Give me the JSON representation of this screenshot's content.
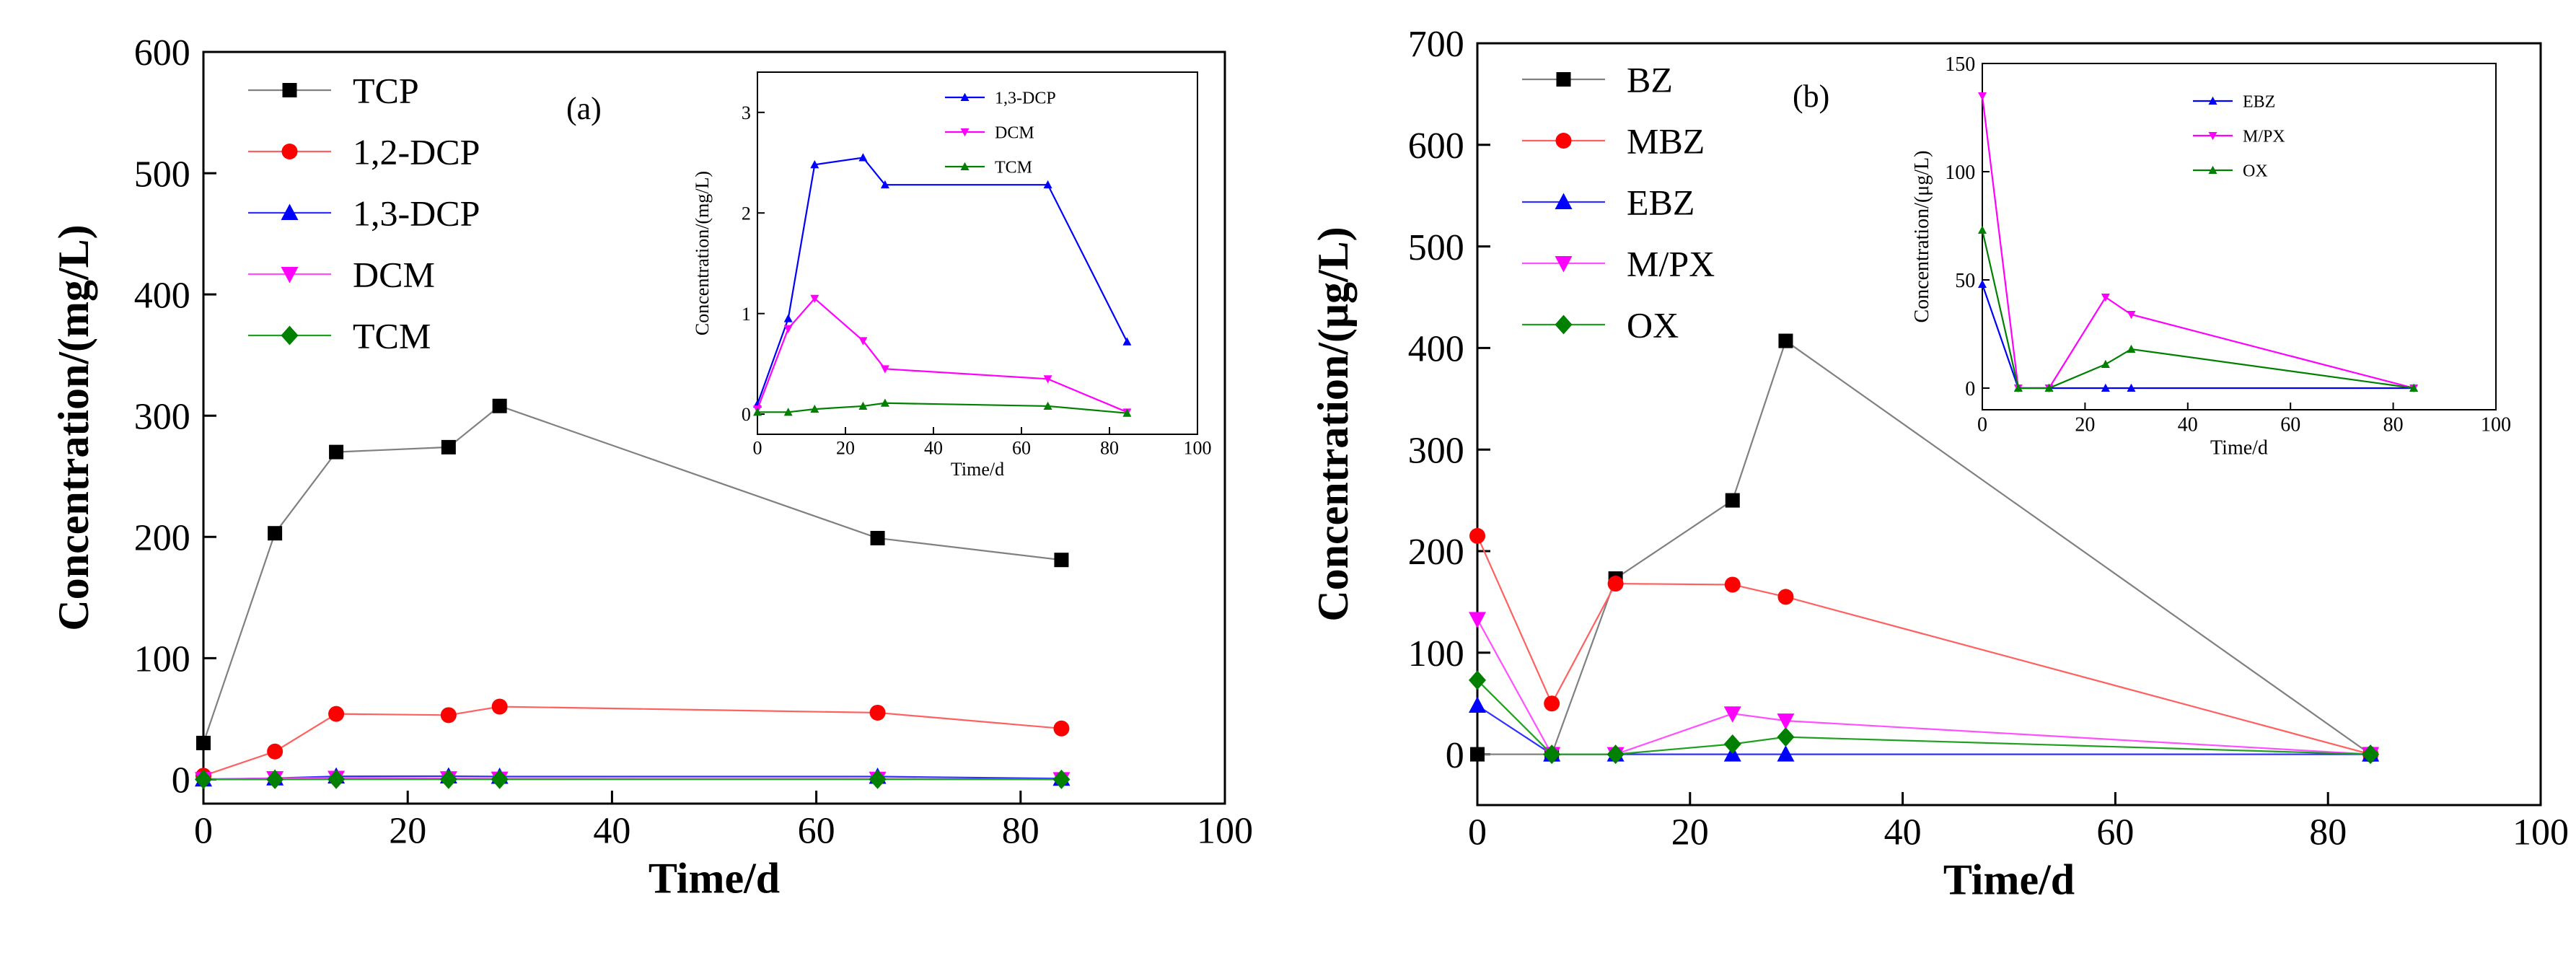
{
  "chart_data": [
    {
      "type": "line",
      "panel_label": "(a)",
      "xlabel": "Time/d",
      "ylabel": "Concentration/(mg/L)",
      "xlim": [
        0,
        100
      ],
      "ylim": [
        -20,
        600
      ],
      "xticks": [
        0,
        20,
        40,
        60,
        80,
        100
      ],
      "yticks": [
        0,
        100,
        200,
        300,
        400,
        500,
        600
      ],
      "legend_position": "top-left",
      "series": [
        {
          "name": "TCP",
          "color": "#000000",
          "lineColor": "#808080",
          "marker": "square",
          "x": [
            0,
            7,
            13,
            24,
            29,
            66,
            84
          ],
          "y": [
            30,
            203,
            270,
            274,
            308,
            199,
            181
          ]
        },
        {
          "name": "1,2-DCP",
          "color": "#ff0000",
          "lineColor": "#ff6060",
          "marker": "circle",
          "x": [
            0,
            7,
            13,
            24,
            29,
            66,
            84
          ],
          "y": [
            3,
            23,
            54,
            53,
            60,
            55,
            42
          ]
        },
        {
          "name": "1,3-DCP",
          "color": "#0000ff",
          "lineColor": "#3030ff",
          "marker": "triangle",
          "x": [
            0,
            7,
            13,
            24,
            29,
            66,
            84
          ],
          "y": [
            0.1,
            1,
            2.5,
            2.6,
            2.3,
            2.3,
            0.7
          ]
        },
        {
          "name": "DCM",
          "color": "#ff00ff",
          "lineColor": "#ff50ff",
          "marker": "triangle-down",
          "x": [
            0,
            7,
            13,
            24,
            29,
            66,
            84
          ],
          "y": [
            0.05,
            0.85,
            1.15,
            0.75,
            0.45,
            0.35,
            0
          ]
        },
        {
          "name": "TCM",
          "color": "#008000",
          "lineColor": "#20a020",
          "marker": "diamond",
          "x": [
            0,
            7,
            13,
            24,
            29,
            66,
            84
          ],
          "y": [
            0.02,
            0.02,
            0.05,
            0.08,
            0.1,
            0.08,
            0.01
          ]
        }
      ],
      "inset": {
        "xlabel": "Time/d",
        "ylabel": "Concentration/(mg/L)",
        "xlim": [
          0,
          100
        ],
        "ylim": [
          -0.2,
          3.4
        ],
        "xticks": [
          0,
          20,
          40,
          60,
          80,
          100
        ],
        "yticks": [
          0,
          1,
          2,
          3
        ],
        "legend_position": "top-right",
        "series": [
          {
            "name": "1,3-DCP",
            "color": "#0000ff",
            "marker": "triangle",
            "x": [
              0,
              7,
              13,
              24,
              29,
              66,
              84
            ],
            "y": [
              0.1,
              0.95,
              2.48,
              2.55,
              2.28,
              2.28,
              0.72
            ]
          },
          {
            "name": "DCM",
            "color": "#ff00ff",
            "marker": "triangle-down",
            "x": [
              0,
              7,
              13,
              24,
              29,
              66,
              84
            ],
            "y": [
              0.05,
              0.85,
              1.15,
              0.73,
              0.45,
              0.35,
              0.02
            ]
          },
          {
            "name": "TCM",
            "color": "#008000",
            "marker": "triangle",
            "x": [
              0,
              7,
              13,
              24,
              29,
              66,
              84
            ],
            "y": [
              0.02,
              0.02,
              0.05,
              0.08,
              0.11,
              0.08,
              0.01
            ]
          }
        ]
      }
    },
    {
      "type": "line",
      "panel_label": "(b)",
      "xlabel": "Time/d",
      "ylabel": "Concentration/(μg/L)",
      "xlim": [
        0,
        100
      ],
      "ylim": [
        -50,
        700
      ],
      "xticks": [
        0,
        20,
        40,
        60,
        80,
        100
      ],
      "yticks": [
        0,
        100,
        200,
        300,
        400,
        500,
        600,
        700
      ],
      "legend_position": "top-left",
      "series": [
        {
          "name": "BZ",
          "color": "#000000",
          "lineColor": "#808080",
          "marker": "square",
          "x": [
            0,
            7,
            13,
            24,
            29,
            84
          ],
          "y": [
            0,
            0,
            173,
            250,
            407,
            0
          ]
        },
        {
          "name": "MBZ",
          "color": "#ff0000",
          "lineColor": "#ff6060",
          "marker": "circle",
          "x": [
            0,
            7,
            13,
            24,
            29,
            84
          ],
          "y": [
            215,
            50,
            168,
            167,
            155,
            0
          ]
        },
        {
          "name": "EBZ",
          "color": "#0000ff",
          "lineColor": "#3030ff",
          "marker": "triangle",
          "x": [
            0,
            7,
            13,
            24,
            29,
            84
          ],
          "y": [
            48,
            0,
            0,
            0,
            0,
            0
          ]
        },
        {
          "name": "M/PX",
          "color": "#ff00ff",
          "lineColor": "#ff50ff",
          "marker": "triangle-down",
          "x": [
            0,
            7,
            13,
            24,
            29,
            84
          ],
          "y": [
            133,
            0,
            0,
            40,
            33,
            0
          ]
        },
        {
          "name": "OX",
          "color": "#008000",
          "lineColor": "#20a020",
          "marker": "diamond",
          "x": [
            0,
            7,
            13,
            24,
            29,
            84
          ],
          "y": [
            73,
            0,
            0,
            10,
            17,
            0
          ]
        }
      ],
      "inset": {
        "xlabel": "Time/d",
        "ylabel": "Concentration/(μg/L)",
        "xlim": [
          0,
          100
        ],
        "ylim": [
          -10,
          150
        ],
        "xticks": [
          0,
          20,
          40,
          60,
          80,
          100
        ],
        "yticks": [
          0,
          50,
          100,
          150
        ],
        "legend_position": "top-right",
        "series": [
          {
            "name": "EBZ",
            "color": "#0000ff",
            "marker": "triangle",
            "x": [
              0,
              7,
              13,
              24,
              29,
              84
            ],
            "y": [
              48,
              0,
              0,
              0,
              0,
              0
            ]
          },
          {
            "name": "M/PX",
            "color": "#ff00ff",
            "marker": "triangle-down",
            "x": [
              0,
              7,
              13,
              24,
              29,
              84
            ],
            "y": [
              135,
              0,
              0,
              42,
              34,
              0
            ]
          },
          {
            "name": "OX",
            "color": "#008000",
            "marker": "triangle",
            "x": [
              0,
              7,
              13,
              24,
              29,
              84
            ],
            "y": [
              73,
              0,
              0,
              11,
              18,
              0
            ]
          }
        ]
      }
    }
  ]
}
